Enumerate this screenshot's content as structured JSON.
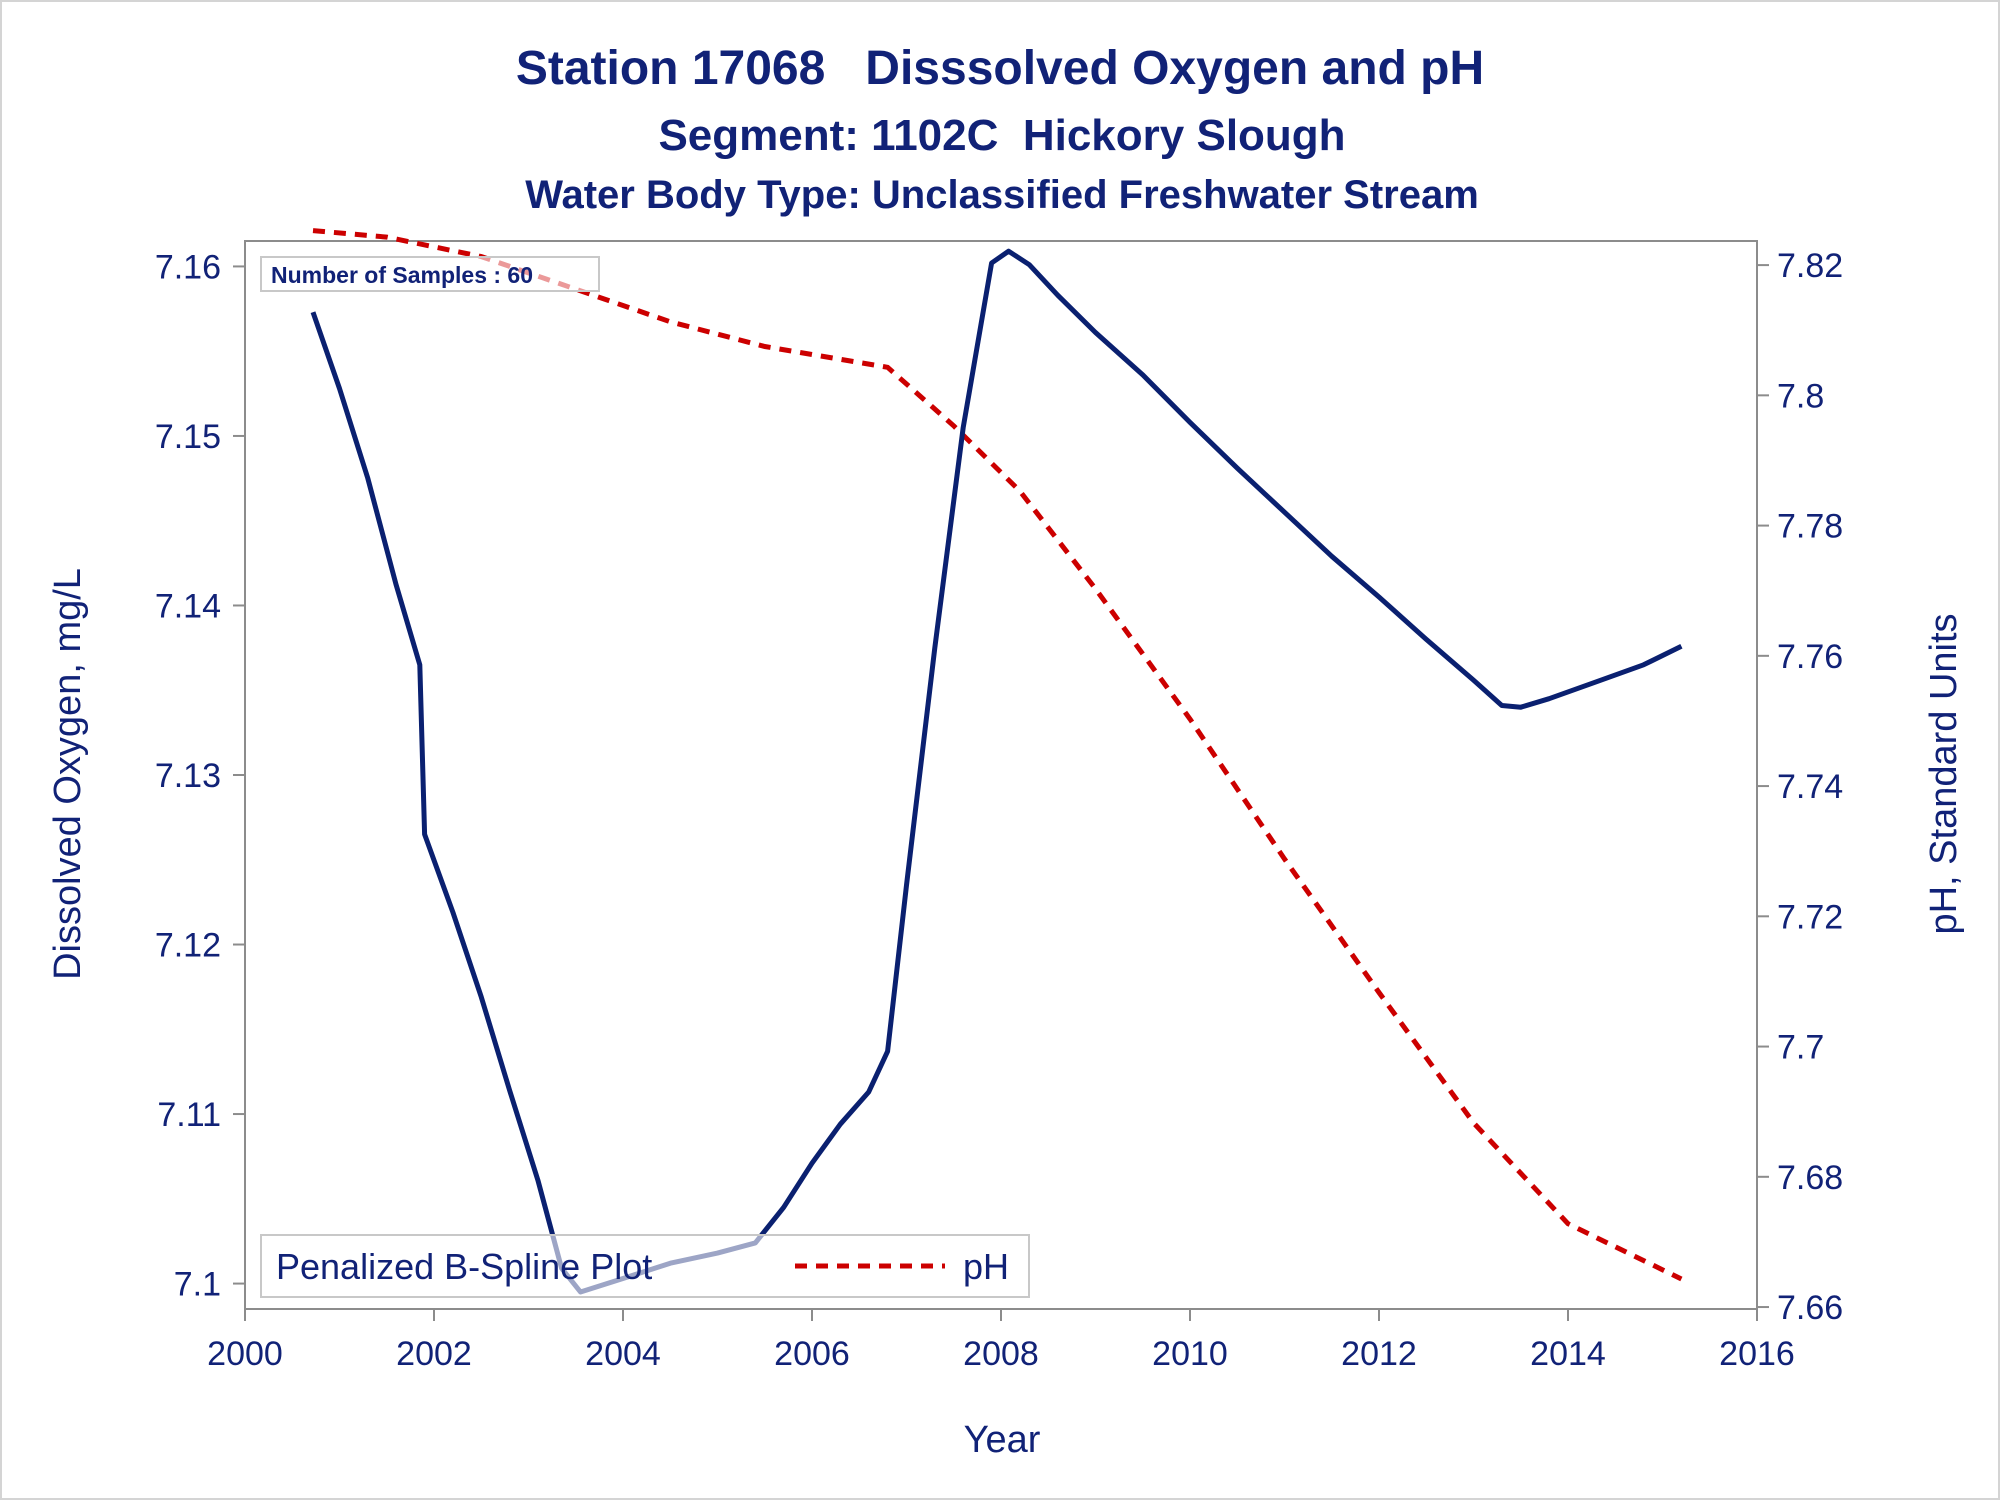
{
  "titles": {
    "line1": "Station 17068   Disssolved Oxygen and pH",
    "line2": "Segment: 1102C  Hickory Slough",
    "line3": "Water Body Type: Unclassified Freshwater Stream"
  },
  "inset_label": "Number of Samples : 60",
  "legend": {
    "title": "Penalized B-Spline Plot",
    "series_label": "pH"
  },
  "colors": {
    "text": "#112277",
    "do_line": "#0a2070",
    "ph_line": "#cc0000",
    "axis": "#8c8c8c"
  },
  "chart_data": {
    "type": "line",
    "title": "Station 17068   Disssolved Oxygen and pH",
    "xlabel": "Year",
    "ylabel": "Dissolved Oxygen, mg/L",
    "y2label": "pH, Standard Units",
    "xlim": [
      2000,
      2016
    ],
    "ylim": [
      7.0985,
      7.1615
    ],
    "y2lim": [
      7.6597,
      7.8237
    ],
    "x_ticks": [
      2000,
      2002,
      2004,
      2006,
      2008,
      2010,
      2012,
      2014,
      2016
    ],
    "x_tick_labels": [
      "2000",
      "2002",
      "2004",
      "2006",
      "2008",
      "2010",
      "2012",
      "2014",
      "2016"
    ],
    "y_ticks": [
      7.1,
      7.11,
      7.12,
      7.13,
      7.14,
      7.15,
      7.16
    ],
    "y_tick_labels": [
      "7.1",
      "7.11",
      "7.12",
      "7.13",
      "7.14",
      "7.15",
      "7.16"
    ],
    "y2_ticks": [
      7.66,
      7.68,
      7.7,
      7.72,
      7.74,
      7.76,
      7.78,
      7.8,
      7.82
    ],
    "y2_tick_labels": [
      "7.66",
      "7.68",
      "7.7",
      "7.72",
      "7.74",
      "7.76",
      "7.78",
      "7.8",
      "7.82"
    ],
    "grid": false,
    "legend_position": "bottom-left",
    "series": [
      {
        "axis": "left",
        "style": "solid",
        "points": [
          [
            2000.72,
            7.1573
          ],
          [
            2001.0,
            7.1528
          ],
          [
            2001.3,
            7.1475
          ],
          [
            2001.6,
            7.1412
          ],
          [
            2001.85,
            7.1365
          ],
          [
            2001.9,
            7.1265
          ],
          [
            2002.2,
            7.1219
          ],
          [
            2002.5,
            7.1169
          ],
          [
            2002.8,
            7.1114
          ],
          [
            2003.1,
            7.1061
          ],
          [
            2003.35,
            7.1009
          ],
          [
            2003.55,
            7.0995
          ],
          [
            2004.0,
            7.1003
          ],
          [
            2004.5,
            7.1012
          ],
          [
            2005.0,
            7.1018
          ],
          [
            2005.4,
            7.1024
          ],
          [
            2005.7,
            7.1045
          ],
          [
            2006.0,
            7.1071
          ],
          [
            2006.3,
            7.1094
          ],
          [
            2006.6,
            7.1113
          ],
          [
            2006.8,
            7.1137
          ],
          [
            2007.0,
            7.1235
          ],
          [
            2007.3,
            7.1375
          ],
          [
            2007.6,
            7.1505
          ],
          [
            2007.9,
            7.1602
          ],
          [
            2008.08,
            7.1609
          ],
          [
            2008.3,
            7.1601
          ],
          [
            2008.6,
            7.1583
          ],
          [
            2009.0,
            7.1561
          ],
          [
            2009.5,
            7.1536
          ],
          [
            2010.0,
            7.1508
          ],
          [
            2010.5,
            7.1481
          ],
          [
            2011.0,
            7.1455
          ],
          [
            2011.5,
            7.1429
          ],
          [
            2012.0,
            7.1405
          ],
          [
            2012.5,
            7.138
          ],
          [
            2013.0,
            7.1356
          ],
          [
            2013.3,
            7.1341
          ],
          [
            2013.5,
            7.134
          ],
          [
            2013.8,
            7.1345
          ],
          [
            2014.3,
            7.1355
          ],
          [
            2014.8,
            7.1365
          ],
          [
            2015.2,
            7.1376
          ]
        ]
      },
      {
        "name": "pH",
        "axis": "right",
        "style": "dashed",
        "points": [
          [
            2000.72,
            7.8253
          ],
          [
            2001.5,
            7.8243
          ],
          [
            2002.5,
            7.8213
          ],
          [
            2003.5,
            7.8163
          ],
          [
            2004.5,
            7.8113
          ],
          [
            2005.5,
            7.8075
          ],
          [
            2006.8,
            7.8043
          ],
          [
            2007.5,
            7.7953
          ],
          [
            2008.2,
            7.7853
          ],
          [
            2009.0,
            7.7703
          ],
          [
            2010.0,
            7.7503
          ],
          [
            2011.0,
            7.7288
          ],
          [
            2012.0,
            7.7083
          ],
          [
            2013.0,
            7.6883
          ],
          [
            2014.0,
            7.6728
          ],
          [
            2015.2,
            7.6643
          ]
        ]
      }
    ]
  }
}
